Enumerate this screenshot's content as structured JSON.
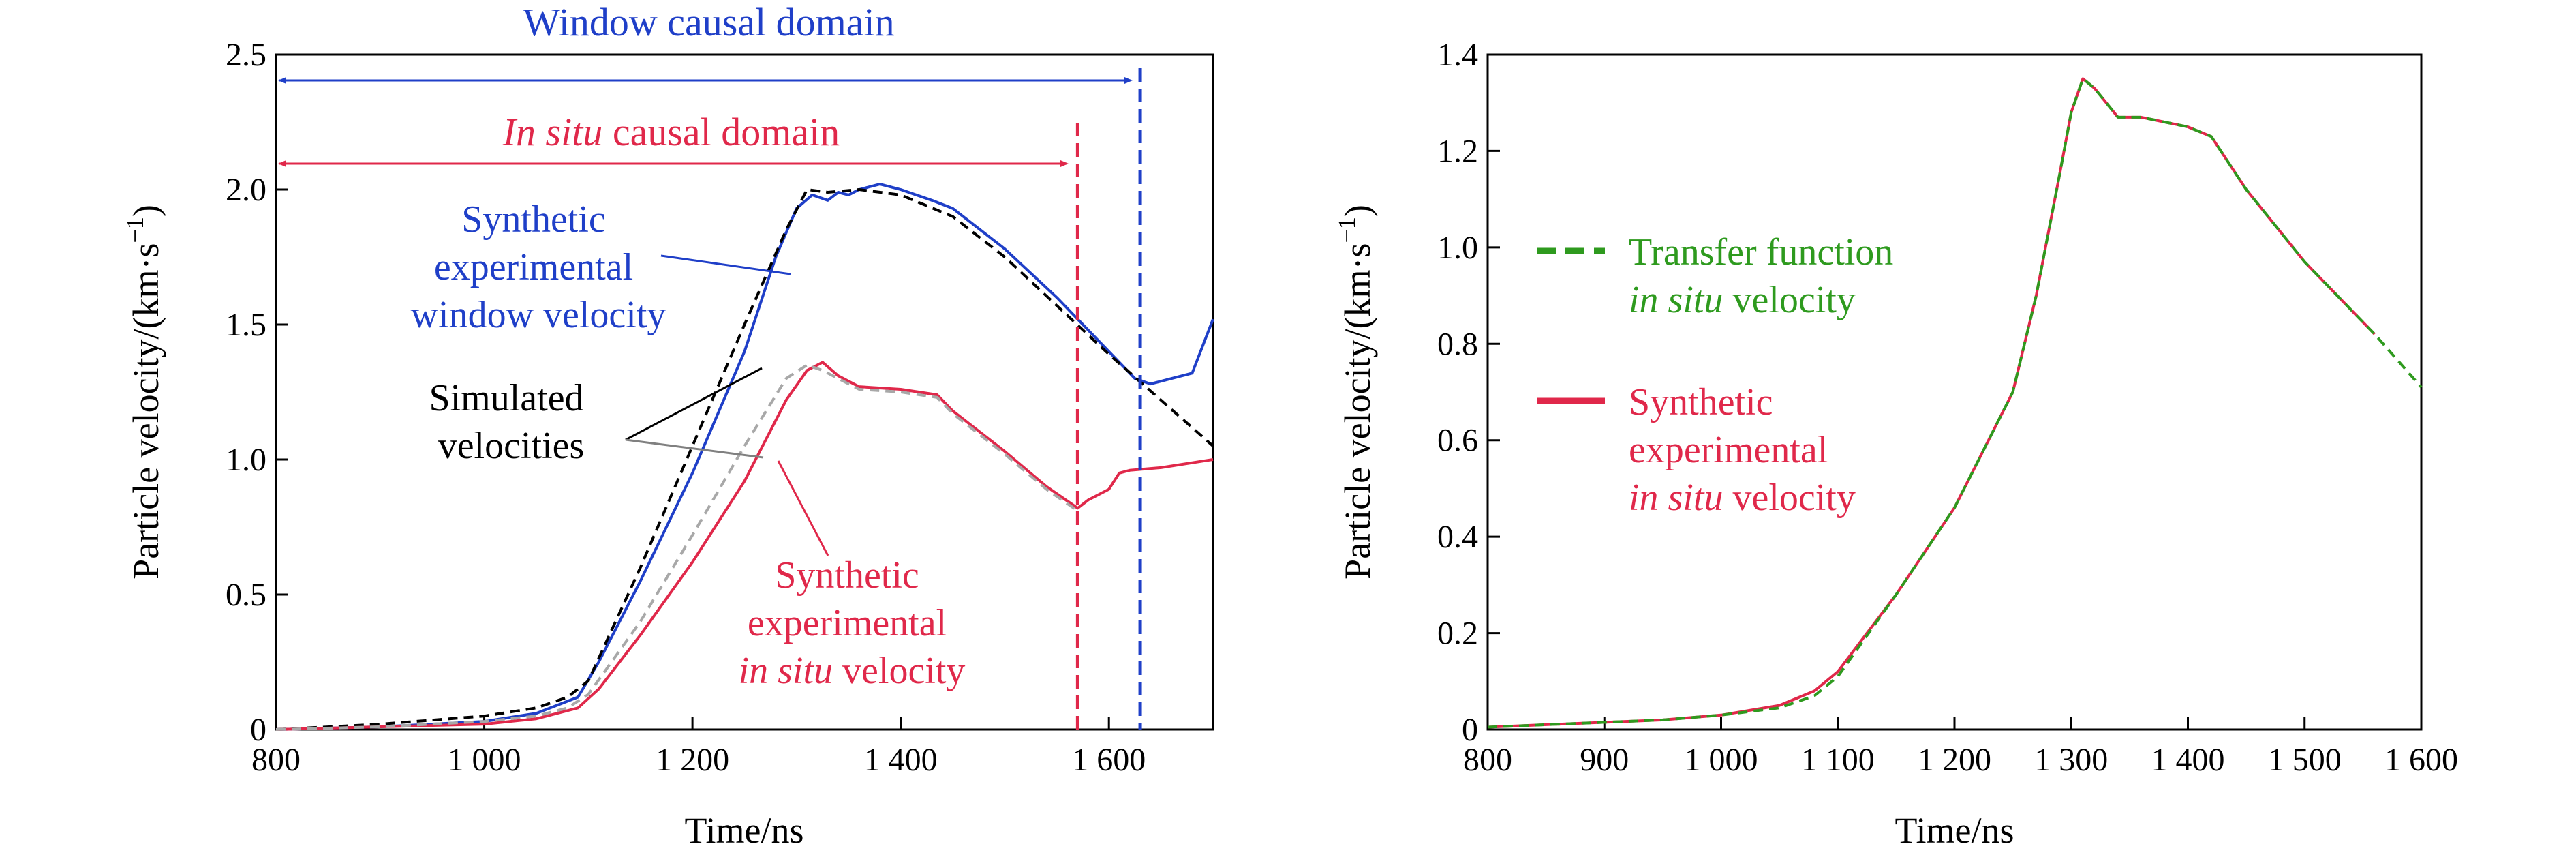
{
  "chart_data": [
    {
      "type": "line",
      "xlabel": "Time/ns",
      "ylabel": "Particle velocity/(km·s",
      "ylabel_sup": "−1",
      "ylabel_close": ")",
      "xlim": [
        800,
        1700
      ],
      "ylim": [
        0,
        2.5
      ],
      "xticks": [
        800,
        1000,
        1200,
        1400,
        1600
      ],
      "xtick_labels": [
        "800",
        "1 000",
        "1 200",
        "1 400",
        "1 600"
      ],
      "yticks": [
        0,
        0.5,
        1.0,
        1.5,
        2.0,
        2.5
      ],
      "ytick_labels": [
        "0",
        "0.5",
        "1.0",
        "1.5",
        "2.0",
        "2.5"
      ],
      "grid": false,
      "series": [
        {
          "role": "synthetic-window",
          "color": "#1f3fc8",
          "dash": "solid",
          "x": [
            800,
            900,
            1000,
            1050,
            1090,
            1110,
            1150,
            1200,
            1250,
            1280,
            1300,
            1315,
            1330,
            1340,
            1350,
            1360,
            1380,
            1400,
            1430,
            1450,
            1500,
            1550,
            1600,
            1625,
            1640,
            1650,
            1660,
            1680,
            1690,
            1700
          ],
          "y": [
            0,
            0.01,
            0.03,
            0.06,
            0.12,
            0.25,
            0.55,
            0.95,
            1.4,
            1.75,
            1.93,
            1.98,
            1.96,
            1.99,
            1.98,
            2.0,
            2.02,
            2.0,
            1.96,
            1.93,
            1.78,
            1.6,
            1.4,
            1.3,
            1.28,
            1.29,
            1.3,
            1.32,
            1.42,
            1.52
          ]
        },
        {
          "role": "simulated-window",
          "color": "#000000",
          "dash": "dashed",
          "x": [
            800,
            900,
            1000,
            1050,
            1080,
            1100,
            1150,
            1200,
            1250,
            1290,
            1310,
            1330,
            1360,
            1400,
            1450,
            1500,
            1550,
            1600,
            1650,
            1700
          ],
          "y": [
            0,
            0.02,
            0.05,
            0.08,
            0.12,
            0.18,
            0.6,
            1.05,
            1.5,
            1.85,
            2.0,
            1.99,
            2.0,
            1.98,
            1.9,
            1.75,
            1.57,
            1.39,
            1.22,
            1.05
          ]
        },
        {
          "role": "synthetic-in-situ",
          "color": "#e0284a",
          "dash": "solid",
          "x": [
            800,
            900,
            1000,
            1050,
            1090,
            1110,
            1150,
            1200,
            1250,
            1290,
            1310,
            1325,
            1340,
            1360,
            1400,
            1435,
            1450,
            1500,
            1540,
            1570,
            1580,
            1600,
            1610,
            1620,
            1650,
            1700
          ],
          "y": [
            0,
            0.01,
            0.02,
            0.04,
            0.08,
            0.15,
            0.35,
            0.62,
            0.92,
            1.22,
            1.33,
            1.36,
            1.31,
            1.27,
            1.26,
            1.24,
            1.18,
            1.03,
            0.9,
            0.82,
            0.85,
            0.89,
            0.95,
            0.96,
            0.97,
            1.0
          ]
        },
        {
          "role": "simulated-in-situ",
          "color": "#a8a8a8",
          "dash": "dashed",
          "x": [
            800,
            900,
            1000,
            1050,
            1080,
            1100,
            1150,
            1200,
            1250,
            1290,
            1310,
            1325,
            1340,
            1360,
            1400,
            1435,
            1450,
            1500,
            1540,
            1570
          ],
          "y": [
            0,
            0.01,
            0.03,
            0.05,
            0.08,
            0.13,
            0.4,
            0.72,
            1.05,
            1.3,
            1.35,
            1.33,
            1.3,
            1.26,
            1.25,
            1.23,
            1.17,
            1.02,
            0.89,
            0.81
          ]
        }
      ],
      "markers": [
        {
          "role": "in-situ-limit",
          "x": 1570,
          "color": "#e0284a"
        },
        {
          "role": "window-limit",
          "x": 1630,
          "color": "#1f3fc8"
        }
      ],
      "annotations": {
        "window_domain": "Window causal domain",
        "in_situ_domain_italic": "In situ",
        "in_situ_domain_rest": " causal domain",
        "synthetic_window": [
          "Synthetic",
          "experimental",
          "window velocity"
        ],
        "simulated": [
          "Simulated",
          "velocities"
        ],
        "synthetic_in_situ": [
          "Synthetic",
          "experimental"
        ],
        "synthetic_in_situ_last_italic": "in situ",
        "synthetic_in_situ_last_rest": " velocity"
      },
      "colors": {
        "blue": "#1f3fc8",
        "red": "#e0284a",
        "black": "#000000",
        "gray": "#a8a8a8",
        "leader_gray": "#808080"
      }
    },
    {
      "type": "line",
      "xlabel": "Time/ns",
      "ylabel": "Particle velocity/(km·s",
      "ylabel_sup": "−1",
      "ylabel_close": ")",
      "xlim": [
        800,
        1600
      ],
      "ylim": [
        0,
        1.4
      ],
      "xticks": [
        800,
        900,
        1000,
        1100,
        1200,
        1300,
        1400,
        1500,
        1600
      ],
      "xtick_labels": [
        "800",
        "900",
        "1 000",
        "1 100",
        "1 200",
        "1 300",
        "1 400",
        "1 500",
        "1 600"
      ],
      "yticks": [
        0,
        0.2,
        0.4,
        0.6,
        0.8,
        1.0,
        1.2,
        1.4
      ],
      "ytick_labels": [
        "0",
        "0.2",
        "0.4",
        "0.6",
        "0.8",
        "1.0",
        "1.2",
        "1.4"
      ],
      "grid": false,
      "legend_position": "left",
      "legend": [
        {
          "lines": [
            "Transfer function"
          ],
          "last_italic": "in situ",
          "last_rest": " velocity",
          "color": "#2e9a1e",
          "dash": "dashed"
        },
        {
          "lines": [
            "Synthetic",
            "experimental"
          ],
          "last_italic": "in situ",
          "last_rest": " velocity",
          "color": "#e0284a",
          "dash": "solid"
        }
      ],
      "series": [
        {
          "role": "synthetic-in-situ",
          "color": "#e0284a",
          "dash": "solid",
          "x": [
            800,
            850,
            900,
            950,
            1000,
            1050,
            1080,
            1100,
            1150,
            1200,
            1250,
            1270,
            1290,
            1300,
            1310,
            1320,
            1340,
            1360,
            1400,
            1420,
            1450,
            1500,
            1560
          ],
          "y": [
            0.005,
            0.01,
            0.015,
            0.02,
            0.03,
            0.05,
            0.08,
            0.12,
            0.28,
            0.46,
            0.7,
            0.9,
            1.15,
            1.28,
            1.35,
            1.33,
            1.27,
            1.27,
            1.25,
            1.23,
            1.12,
            0.97,
            0.82
          ]
        },
        {
          "role": "transfer-function",
          "color": "#2e9a1e",
          "dash": "dashed",
          "x": [
            800,
            850,
            900,
            950,
            1000,
            1050,
            1080,
            1100,
            1150,
            1200,
            1250,
            1270,
            1290,
            1300,
            1310,
            1320,
            1340,
            1360,
            1400,
            1420,
            1450,
            1500,
            1560,
            1600
          ],
          "y": [
            0.005,
            0.01,
            0.015,
            0.02,
            0.03,
            0.045,
            0.07,
            0.11,
            0.28,
            0.46,
            0.7,
            0.9,
            1.15,
            1.28,
            1.35,
            1.33,
            1.27,
            1.27,
            1.25,
            1.23,
            1.12,
            0.97,
            0.82,
            0.71
          ]
        }
      ],
      "colors": {
        "green": "#2e9a1e",
        "red": "#e0284a"
      }
    }
  ]
}
